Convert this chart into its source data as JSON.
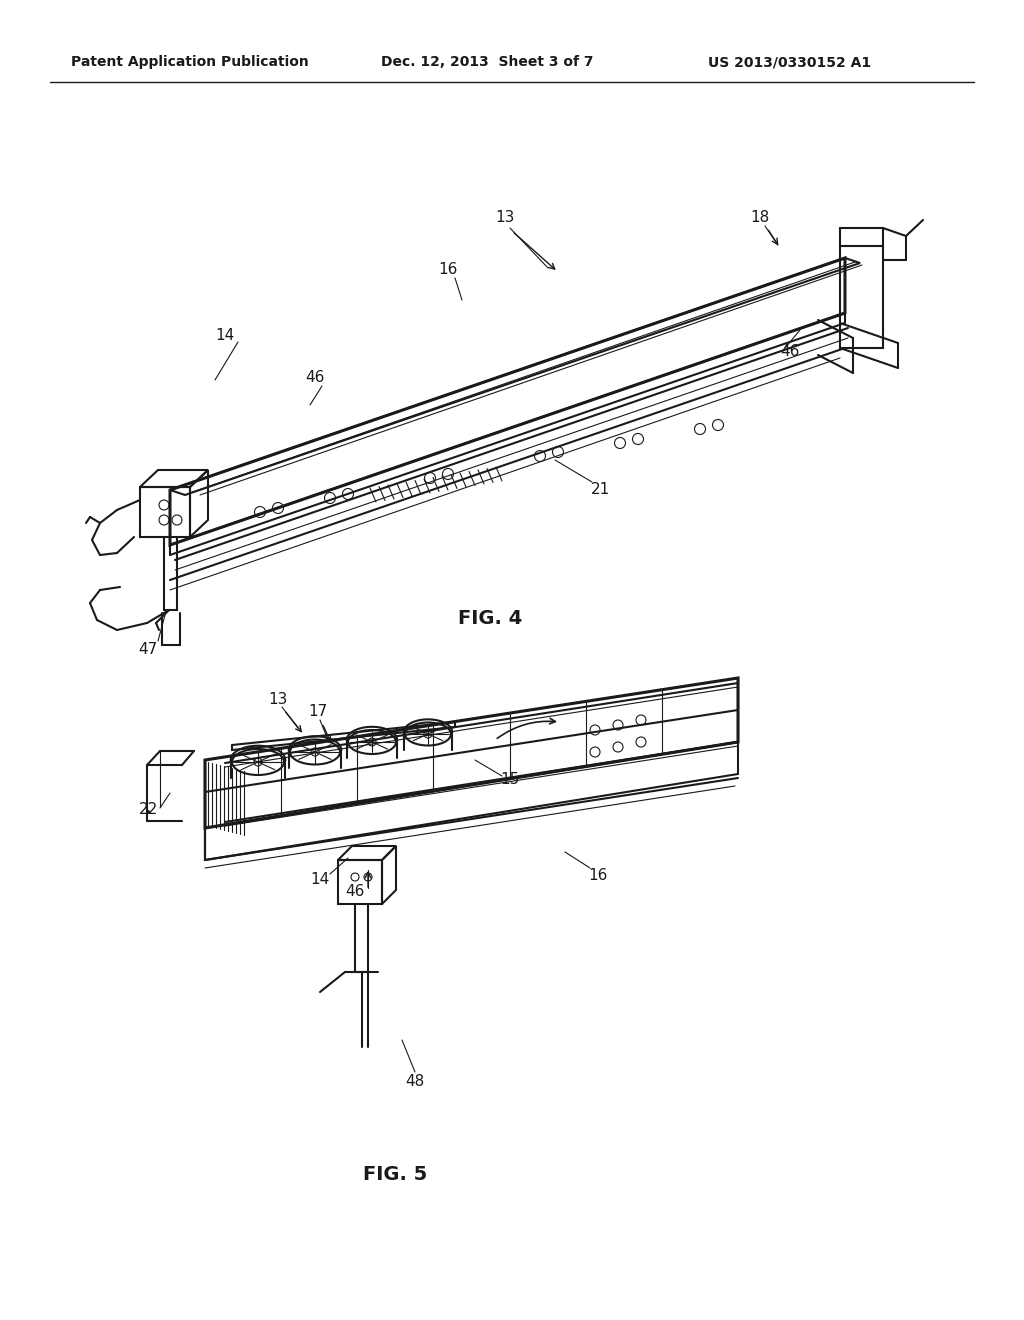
{
  "background_color": "#ffffff",
  "header_left": "Patent Application Publication",
  "header_middle": "Dec. 12, 2013  Sheet 3 of 7",
  "header_right": "US 2013/0330152 A1",
  "fig4_label": "FIG. 4",
  "fig5_label": "FIG. 5",
  "line_color": "#1a1a1a",
  "text_color": "#1a1a1a",
  "line_width": 1.5,
  "thin_line": 0.8,
  "thick_line": 2.2
}
